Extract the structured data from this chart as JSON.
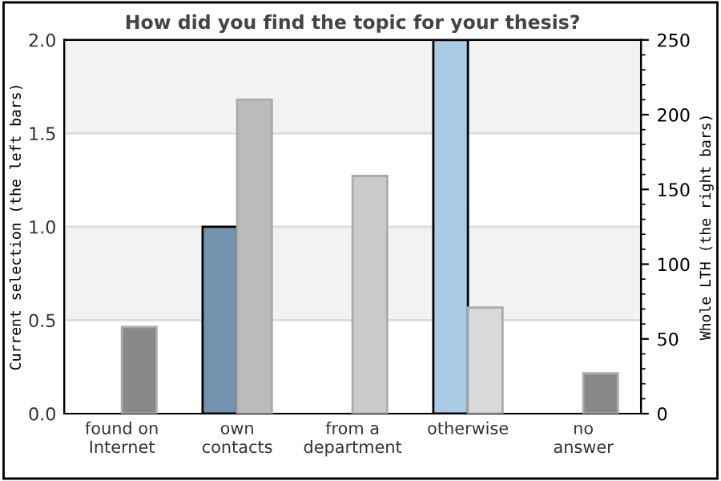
{
  "chart_data": {
    "type": "bar",
    "title": "How did you find the topic for your thesis?",
    "categories": [
      "found on\nInternet",
      "own\ncontacts",
      "from a\ndepartment",
      "otherwise",
      "no\nanswer"
    ],
    "ylabel": "Current selection (the left bars)",
    "y2label": "Whole LTH (the right bars)",
    "series": [
      {
        "colors": [
          "#7393ae",
          "#7393ae",
          "#a9cbe6",
          "#a9cbe6",
          "#a9cbe6"
        ],
        "values": [
          0,
          1.0,
          0,
          2.0,
          0
        ]
      },
      {
        "axis": "y2",
        "colors": [
          "#888888",
          "#bbbbbb",
          "#cacaca",
          "#d9d9d9",
          "#888888"
        ],
        "values": [
          58,
          210,
          159,
          71,
          27
        ]
      }
    ],
    "ylim": [
      0,
      2.0
    ],
    "yticks": [
      {
        "value": 0,
        "label": "0.0"
      },
      {
        "value": 0.5,
        "label": "0.5"
      },
      {
        "value": 1.0,
        "label": "1.0"
      },
      {
        "value": 1.5,
        "label": "1.5"
      },
      {
        "value": 2.0,
        "label": "2.0"
      }
    ],
    "y2lim": [
      0,
      250
    ],
    "y2ticks": [
      0,
      50,
      100,
      150,
      200,
      250
    ],
    "grid": "y",
    "legend": false
  }
}
